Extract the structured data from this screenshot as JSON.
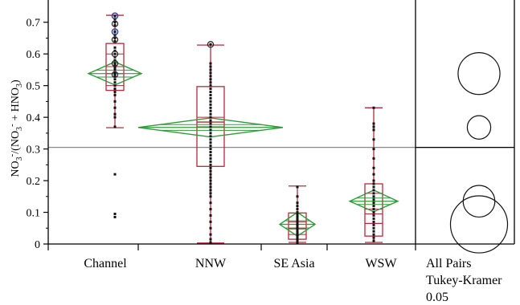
{
  "chart_data": {
    "type": "box",
    "ylabel_parts": [
      "NO",
      "3",
      "-",
      "/(NO",
      "3",
      "-",
      " + HNO",
      "3",
      ")"
    ],
    "ylim": [
      0,
      0.75
    ],
    "yticks": [
      "0",
      "0.1",
      "0.2",
      "0.3",
      "0.4",
      "0.5",
      "0.6",
      "0.7"
    ],
    "categories": [
      "Channel",
      "NNW",
      "SE Asia",
      "WSW"
    ],
    "grand_mean": 0.305,
    "groups": [
      {
        "name": "Channel",
        "whisker_low": 0.367,
        "q1": 0.485,
        "median": 0.538,
        "q3": 0.633,
        "whisker_high": 0.722,
        "quantile_lines": [
          0.5,
          0.56,
          0.6
        ],
        "mean": 0.538,
        "ci_low": 0.502,
        "ci_high": 0.575,
        "points": [
          0.72,
          0.71,
          0.7,
          0.69,
          0.67,
          0.66,
          0.65,
          0.64,
          0.62,
          0.61,
          0.6,
          0.59,
          0.58,
          0.57,
          0.565,
          0.56,
          0.555,
          0.55,
          0.54,
          0.535,
          0.53,
          0.52,
          0.51,
          0.5,
          0.49,
          0.48,
          0.47,
          0.45,
          0.43,
          0.41,
          0.4,
          0.37,
          0.22,
          0.095,
          0.085
        ],
        "outlier_circles": [
          0.72,
          0.695,
          0.67,
          0.645,
          0.6,
          0.57,
          0.535
        ],
        "blue_circles": [
          0.72,
          0.67
        ]
      },
      {
        "name": "NNW",
        "whisker_low": 0.003,
        "q1": 0.245,
        "median": 0.385,
        "q3": 0.497,
        "whisker_high": 0.628,
        "quantile_lines": [
          0.4,
          0.37
        ],
        "mean": 0.368,
        "ci_low": 0.338,
        "ci_high": 0.398,
        "points": [
          0.63,
          0.57,
          0.56,
          0.55,
          0.54,
          0.53,
          0.52,
          0.51,
          0.5,
          0.49,
          0.48,
          0.47,
          0.46,
          0.45,
          0.44,
          0.43,
          0.42,
          0.41,
          0.4,
          0.39,
          0.38,
          0.37,
          0.36,
          0.35,
          0.34,
          0.33,
          0.32,
          0.31,
          0.3,
          0.29,
          0.28,
          0.27,
          0.26,
          0.25,
          0.24,
          0.23,
          0.22,
          0.21,
          0.2,
          0.19,
          0.18,
          0.17,
          0.16,
          0.15,
          0.13,
          0.11,
          0.09,
          0.07,
          0.05,
          0.03,
          0.015,
          0.005
        ],
        "outlier_circles": [
          0.63
        ],
        "blue_circles": []
      },
      {
        "name": "SE Asia",
        "whisker_low": 0.005,
        "q1": 0.015,
        "median": 0.048,
        "q3": 0.098,
        "whisker_high": 0.183,
        "quantile_lines": [
          0.03,
          0.07
        ],
        "mean": 0.062,
        "ci_low": 0.025,
        "ci_high": 0.1,
        "points": [
          0.18,
          0.15,
          0.13,
          0.12,
          0.11,
          0.1,
          0.095,
          0.09,
          0.085,
          0.08,
          0.075,
          0.07,
          0.065,
          0.06,
          0.055,
          0.05,
          0.045,
          0.04,
          0.035,
          0.03,
          0.025,
          0.02,
          0.015,
          0.01,
          0.005
        ],
        "outlier_circles": [],
        "blue_circles": []
      },
      {
        "name": "WSW",
        "whisker_low": 0.005,
        "q1": 0.025,
        "median": 0.065,
        "q3": 0.19,
        "whisker_high": 0.43,
        "quantile_lines": [
          0.16,
          0.11,
          0.095
        ],
        "mean": 0.135,
        "ci_low": 0.102,
        "ci_high": 0.17,
        "points": [
          0.43,
          0.38,
          0.37,
          0.36,
          0.33,
          0.3,
          0.27,
          0.24,
          0.22,
          0.2,
          0.19,
          0.18,
          0.17,
          0.16,
          0.15,
          0.14,
          0.13,
          0.12,
          0.11,
          0.1,
          0.09,
          0.08,
          0.07,
          0.06,
          0.05,
          0.04,
          0.03,
          0.02,
          0.01
        ],
        "outlier_circles": [],
        "blue_circles": []
      }
    ],
    "comparison_circles": [
      {
        "group": "Channel",
        "center": 0.538,
        "radius": 0.066
      },
      {
        "group": "NNW",
        "center": 0.368,
        "radius": 0.037
      },
      {
        "group": "WSW",
        "center": 0.135,
        "radius": 0.05
      },
      {
        "group": "SE Asia",
        "center": 0.062,
        "radius": 0.09
      }
    ],
    "comparison_label": [
      "All Pairs",
      "Tukey-Kramer",
      "0.05"
    ],
    "colors": {
      "box": "#b8283a",
      "diamond": "#2e9a3a",
      "points": "#111111",
      "grand_mean": "#888888",
      "axis": "#000000",
      "outlier_ring": "#222222",
      "blue_ring": "#3344aa"
    }
  }
}
